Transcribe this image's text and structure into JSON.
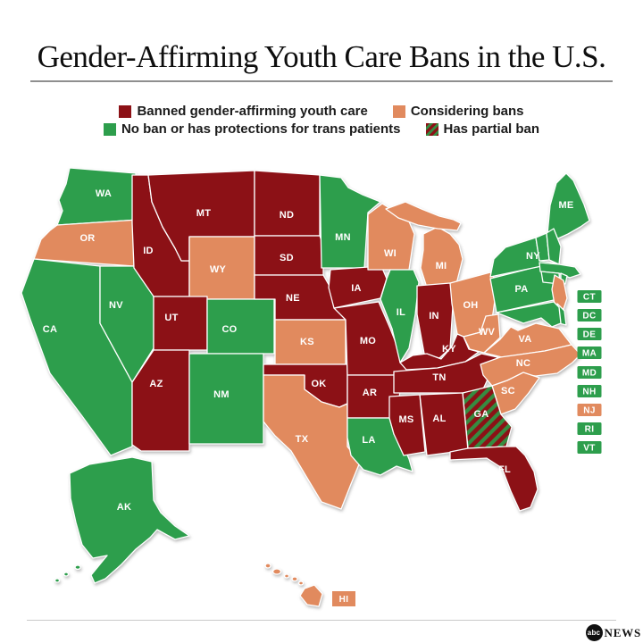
{
  "title": "Gender-Affirming Youth Care Bans in the U.S.",
  "legend": {
    "items": [
      {
        "label": "Banned gender-affirming youth care",
        "category": "banned"
      },
      {
        "label": "Considering bans",
        "category": "considering"
      },
      {
        "label": "No ban or has protections for trans patients",
        "category": "none"
      },
      {
        "label": "Has partial ban",
        "category": "partial"
      }
    ]
  },
  "colors": {
    "banned": "#8c1116",
    "considering": "#e18a5e",
    "none": "#2d9e4c",
    "partial_stripe": "#368c41",
    "state_border": "#ffffff",
    "label_text": "#ffffff"
  },
  "map": {
    "states": [
      {
        "id": "WA",
        "label": "WA",
        "category": "none"
      },
      {
        "id": "OR",
        "label": "OR",
        "category": "considering"
      },
      {
        "id": "CA",
        "label": "CA",
        "category": "none"
      },
      {
        "id": "NV",
        "label": "NV",
        "category": "none"
      },
      {
        "id": "ID",
        "label": "ID",
        "category": "banned"
      },
      {
        "id": "MT",
        "label": "MT",
        "category": "banned"
      },
      {
        "id": "WY",
        "label": "WY",
        "category": "considering"
      },
      {
        "id": "UT",
        "label": "UT",
        "category": "banned"
      },
      {
        "id": "CO",
        "label": "CO",
        "category": "none"
      },
      {
        "id": "AZ",
        "label": "AZ",
        "category": "banned"
      },
      {
        "id": "NM",
        "label": "NM",
        "category": "none"
      },
      {
        "id": "ND",
        "label": "ND",
        "category": "banned"
      },
      {
        "id": "SD",
        "label": "SD",
        "category": "banned"
      },
      {
        "id": "NE",
        "label": "NE",
        "category": "banned"
      },
      {
        "id": "KS",
        "label": "KS",
        "category": "considering"
      },
      {
        "id": "OK",
        "label": "OK",
        "category": "banned"
      },
      {
        "id": "TX",
        "label": "TX",
        "category": "considering"
      },
      {
        "id": "MN",
        "label": "MN",
        "category": "none"
      },
      {
        "id": "IA",
        "label": "IA",
        "category": "banned"
      },
      {
        "id": "MO",
        "label": "MO",
        "category": "banned"
      },
      {
        "id": "AR",
        "label": "AR",
        "category": "banned"
      },
      {
        "id": "LA",
        "label": "LA",
        "category": "none"
      },
      {
        "id": "WI",
        "label": "WI",
        "category": "considering"
      },
      {
        "id": "IL",
        "label": "IL",
        "category": "none"
      },
      {
        "id": "MI",
        "label": "MI",
        "category": "considering"
      },
      {
        "id": "IN",
        "label": "IN",
        "category": "banned"
      },
      {
        "id": "OH",
        "label": "OH",
        "category": "considering"
      },
      {
        "id": "KY",
        "label": "KY",
        "category": "banned"
      },
      {
        "id": "WV",
        "label": "WV",
        "category": "considering"
      },
      {
        "id": "VA",
        "label": "VA",
        "category": "considering"
      },
      {
        "id": "TN",
        "label": "TN",
        "category": "banned"
      },
      {
        "id": "NC",
        "label": "NC",
        "category": "considering"
      },
      {
        "id": "SC",
        "label": "SC",
        "category": "considering"
      },
      {
        "id": "GA",
        "label": "GA",
        "category": "partial"
      },
      {
        "id": "AL",
        "label": "AL",
        "category": "banned"
      },
      {
        "id": "MS",
        "label": "MS",
        "category": "banned"
      },
      {
        "id": "FL",
        "label": "FL",
        "category": "banned"
      },
      {
        "id": "PA",
        "label": "PA",
        "category": "none"
      },
      {
        "id": "NY",
        "label": "NY",
        "category": "none"
      },
      {
        "id": "ME",
        "label": "ME",
        "category": "none"
      },
      {
        "id": "VT",
        "label": "",
        "category": "none"
      },
      {
        "id": "NH",
        "label": "",
        "category": "none"
      },
      {
        "id": "MA",
        "label": "",
        "category": "none"
      },
      {
        "id": "CT",
        "label": "",
        "category": "none"
      },
      {
        "id": "RI",
        "label": "",
        "category": "none"
      },
      {
        "id": "NJ",
        "label": "",
        "category": "considering"
      },
      {
        "id": "DE",
        "label": "",
        "category": "none"
      },
      {
        "id": "MD",
        "label": "",
        "category": "none"
      },
      {
        "id": "AK",
        "label": "AK",
        "category": "none"
      },
      {
        "id": "HI",
        "label": "",
        "category": "considering"
      }
    ]
  },
  "small_state_badges": [
    {
      "label": "CT",
      "category": "none"
    },
    {
      "label": "DC",
      "category": "none"
    },
    {
      "label": "DE",
      "category": "none"
    },
    {
      "label": "MA",
      "category": "none"
    },
    {
      "label": "MD",
      "category": "none"
    },
    {
      "label": "NH",
      "category": "none"
    },
    {
      "label": "NJ",
      "category": "considering"
    },
    {
      "label": "RI",
      "category": "none"
    },
    {
      "label": "VT",
      "category": "none"
    }
  ],
  "hawaii_badge": {
    "label": "HI",
    "category": "considering"
  },
  "footer": {
    "logo_abc": "abc",
    "logo_news": "NEWS"
  }
}
